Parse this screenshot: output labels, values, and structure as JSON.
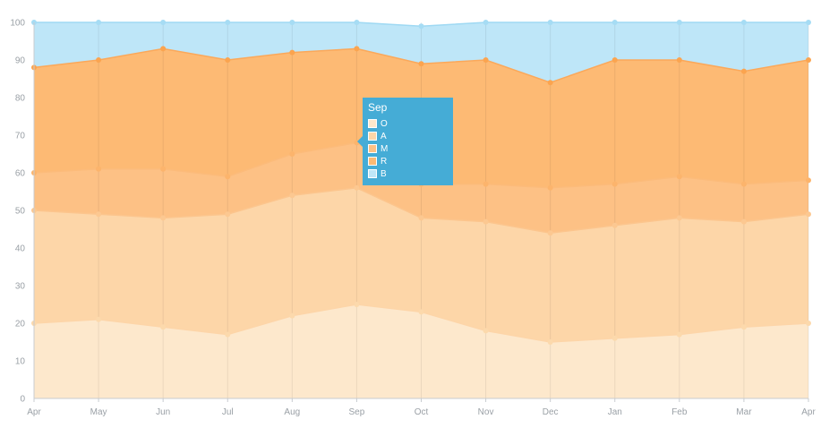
{
  "chart_data": {
    "type": "area",
    "stacked": true,
    "categories": [
      "Apr",
      "May",
      "Jun",
      "Jul",
      "Aug",
      "Sep",
      "Oct",
      "Nov",
      "Dec",
      "Jan",
      "Feb",
      "Mar",
      "Apr"
    ],
    "ylim": [
      0,
      100
    ],
    "yticks": [
      "0",
      "10",
      "20",
      "30",
      "40",
      "50",
      "60",
      "70",
      "80",
      "90",
      "100"
    ],
    "grid": "vertical",
    "series": [
      {
        "name": "O",
        "values": [
          20,
          21,
          19,
          17,
          22,
          25,
          23,
          18,
          15,
          16,
          17,
          19,
          20
        ],
        "color": "#fde8cc"
      },
      {
        "name": "A",
        "values": [
          30,
          28,
          29,
          32,
          32,
          31,
          25,
          29,
          29,
          30,
          31,
          28,
          29
        ],
        "color": "#fdd6a8"
      },
      {
        "name": "M",
        "values": [
          10,
          12,
          13,
          10,
          11,
          12,
          9,
          10,
          12,
          11,
          11,
          10,
          9
        ],
        "color": "#fdc185"
      },
      {
        "name": "R",
        "values": [
          28,
          29,
          32,
          31,
          27,
          25,
          32,
          33,
          28,
          33,
          31,
          30,
          32
        ],
        "color": "#fdba74"
      },
      {
        "name": "B",
        "values": [
          12,
          10,
          7,
          10,
          8,
          7,
          10,
          10,
          16,
          10,
          10,
          13,
          10
        ],
        "color": "#bee6f8"
      }
    ]
  },
  "tooltip": {
    "title": "Sep",
    "items": [
      {
        "label": "O",
        "color": "#fde8cc"
      },
      {
        "label": "A",
        "color": "#fdd6a8"
      },
      {
        "label": "M",
        "color": "#fdc185"
      },
      {
        "label": "R",
        "color": "#fdba74"
      },
      {
        "label": "B",
        "color": "#bee6f8"
      }
    ]
  }
}
